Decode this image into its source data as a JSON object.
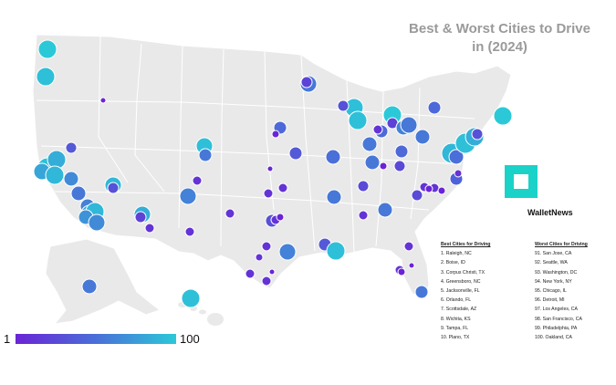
{
  "title": "Best & Worst Cities to Drive in (2024)",
  "brand": "WalletNews",
  "colors": {
    "low": "#6a24d6",
    "mid": "#4a6fd8",
    "high": "#2bc9d8",
    "land": "#e9e9e9",
    "border": "#ffffff",
    "logo": "#1ad2c8"
  },
  "scale": {
    "min": "1",
    "max": "100"
  },
  "best": {
    "header": "Best Cities for Driving",
    "items": [
      "1. Raleigh, NC",
      "2. Boise, ID",
      "3. Corpus Christi, TX",
      "4. Greensboro, NC",
      "5. Jacksonville, FL",
      "6. Orlando, FL",
      "7. Scottsdale, AZ",
      "8. Wichita, KS",
      "9. Tampa, FL",
      "10. Plano, TX"
    ]
  },
  "worst": {
    "header": "Worst Cities for Driving",
    "items": [
      "91. San Jose, CA",
      "92. Seattle, WA",
      "93. Washington, DC",
      "94. New York, NY",
      "95. Chicago, IL",
      "96. Detroit, MI",
      "97. Los Angeles, CA",
      "98. San Francisco, CA",
      "99. Philadelphia, PA",
      "100. Oakland, CA"
    ]
  }
}
